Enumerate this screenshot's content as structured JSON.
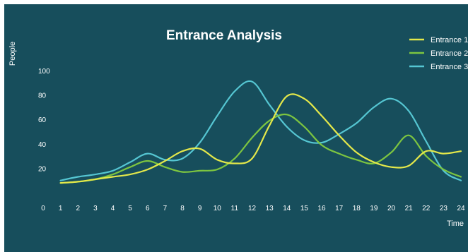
{
  "chart_data": {
    "type": "line",
    "title": "Entrance Analysis",
    "xlabel": "Time",
    "ylabel": "People",
    "xlim": [
      0,
      24
    ],
    "ylim": [
      0,
      100
    ],
    "x_ticks": [
      "0",
      "1",
      "2",
      "3",
      "4",
      "5",
      "6",
      "7",
      "8",
      "9",
      "10",
      "11",
      "12",
      "13",
      "14",
      "15",
      "16",
      "17",
      "18",
      "19",
      "20",
      "21",
      "22",
      "23",
      "24"
    ],
    "y_ticks": [
      "20",
      "40",
      "60",
      "80",
      "100"
    ],
    "grid": false,
    "legend_position": "top-right",
    "x": [
      1,
      2,
      3,
      4,
      5,
      6,
      7,
      8,
      9,
      10,
      11,
      12,
      13,
      14,
      15,
      16,
      17,
      18,
      19,
      20,
      21,
      22,
      23,
      24
    ],
    "series": [
      {
        "name": "Entrance 1",
        "color": "#e4e84a",
        "values": [
          8,
          9,
          11,
          13,
          15,
          19,
          26,
          34,
          36,
          27,
          24,
          28,
          55,
          79,
          77,
          63,
          47,
          33,
          25,
          21,
          22,
          34,
          32,
          34
        ]
      },
      {
        "name": "Entrance 2",
        "color": "#7dc540",
        "values": [
          8,
          9,
          11,
          15,
          21,
          26,
          21,
          17,
          18,
          19,
          28,
          45,
          59,
          64,
          54,
          39,
          32,
          27,
          24,
          33,
          47,
          30,
          19,
          13
        ]
      },
      {
        "name": "Entrance 3",
        "color": "#55c6d2",
        "values": [
          10,
          13,
          15,
          18,
          25,
          32,
          27,
          28,
          41,
          63,
          83,
          91,
          72,
          54,
          43,
          41,
          48,
          57,
          70,
          77,
          67,
          42,
          18,
          10
        ]
      }
    ]
  }
}
